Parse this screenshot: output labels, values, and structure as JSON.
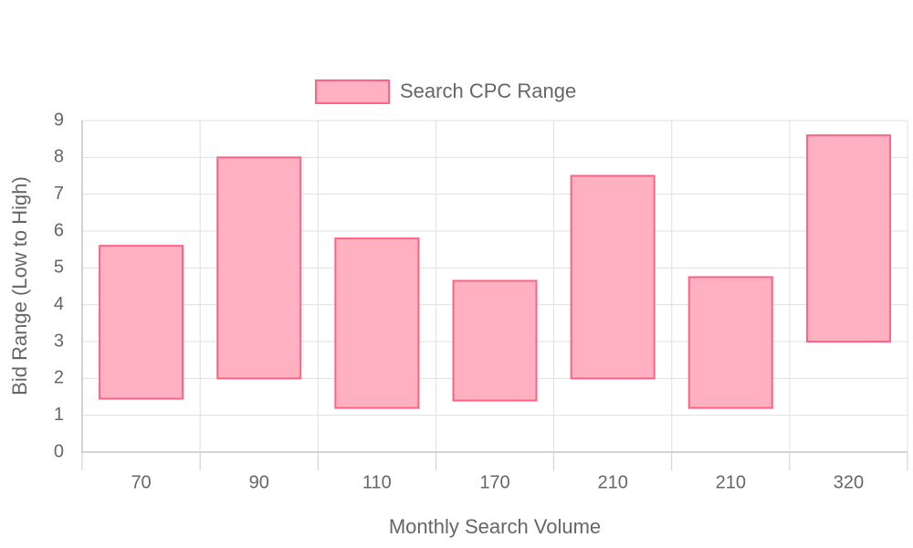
{
  "chart_data": {
    "type": "floating-bar",
    "legend": "top",
    "x_label": "Monthly Search Volume",
    "y_label": "Bid Range (Low to High)",
    "categories": [
      "70",
      "90",
      "110",
      "170",
      "210",
      "210",
      "320"
    ],
    "series": [
      {
        "name": "Search CPC Range",
        "color": "#ff6384",
        "fill": "#ffb1c1",
        "values": [
          [
            1.45,
            5.6
          ],
          [
            2.0,
            8.0
          ],
          [
            1.2,
            5.8
          ],
          [
            1.4,
            4.65
          ],
          [
            2.0,
            7.5
          ],
          [
            1.2,
            4.75
          ],
          [
            3.0,
            8.6
          ]
        ]
      }
    ],
    "ylim": [
      0,
      9
    ],
    "yticks": [
      0,
      1,
      2,
      3,
      4,
      5,
      6,
      7,
      8,
      9
    ],
    "grid": true
  }
}
